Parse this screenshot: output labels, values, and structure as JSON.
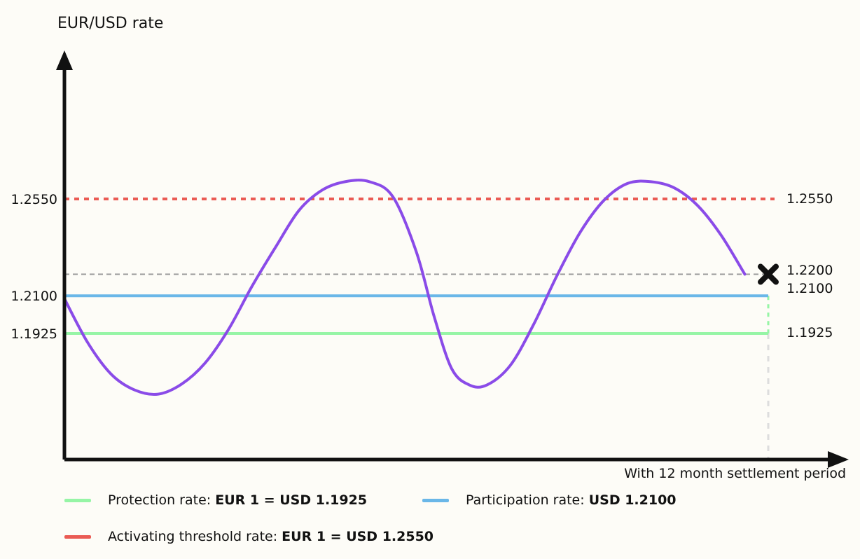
{
  "chart_data": {
    "type": "line",
    "ylabel": "EUR/USD rate",
    "xlabel": "With 12 month settlement period",
    "ylim": [
      1.12,
      1.3
    ],
    "xlim": [
      0,
      12
    ],
    "series": [
      {
        "color": "#8a4be8",
        "x": [
          0,
          0.4,
          0.8,
          1.2,
          1.6,
          2.0,
          2.4,
          2.8,
          3.2,
          3.6,
          4.0,
          4.4,
          4.8,
          5.2,
          5.6,
          6.0,
          6.3,
          6.6,
          6.9,
          7.2,
          7.6,
          8.0,
          8.4,
          8.8,
          9.2,
          9.6,
          10.0,
          10.4,
          10.8,
          11.2,
          11.6,
          12.0
        ],
        "y": [
          1.2086,
          1.1881,
          1.1735,
          1.1662,
          1.1643,
          1.169,
          1.1788,
          1.1945,
          1.2145,
          1.2326,
          1.2497,
          1.2592,
          1.2631,
          1.263,
          1.256,
          1.2304,
          1.2007,
          1.1763,
          1.1686,
          1.1685,
          1.1776,
          1.1967,
          1.2195,
          1.2398,
          1.2544,
          1.2622,
          1.263,
          1.2601,
          1.2518,
          1.238,
          1.22,
          1.22
        ]
      }
    ],
    "hlines": [
      {
        "name": "activating",
        "value": 1.255,
        "color": "#ea5b54",
        "style": "dotted"
      },
      {
        "name": "reference",
        "value": 1.22,
        "color": "#999999",
        "style": "dashed"
      },
      {
        "name": "participation",
        "value": 1.21,
        "color": "#6ab7e8",
        "style": "solid"
      },
      {
        "name": "protection",
        "value": 1.1925,
        "color": "#96f5a6",
        "style": "solid"
      }
    ],
    "left_ticks": [
      "1.2550",
      "1.2100",
      "1.1925"
    ],
    "right_labels": [
      "1.2550",
      "1.2200",
      "1.2100",
      "1.1925"
    ],
    "end_marker": {
      "x": 12,
      "value": 1.22
    },
    "grid": false
  },
  "legend": {
    "protection": {
      "label": "Protection rate: ",
      "value": "EUR 1 = USD 1.1925",
      "color": "#96f5a6"
    },
    "participation": {
      "label": "Participation rate: ",
      "value": "USD 1.2100",
      "color": "#6ab7e8"
    },
    "activating": {
      "label": "Activating threshold rate: ",
      "value": "EUR 1 = USD 1.2550",
      "color": "#ea5b54"
    }
  }
}
